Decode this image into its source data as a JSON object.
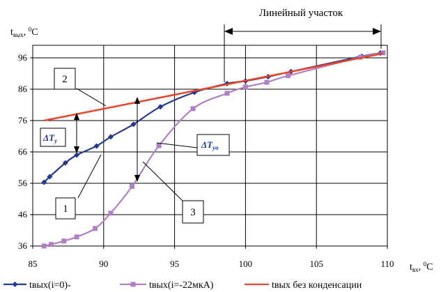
{
  "chart_data": {
    "type": "line",
    "ylabel": "t_вых, °C",
    "xlabel": "t_вх, °C",
    "xlim": [
      85,
      110
    ],
    "ylim": [
      36,
      100
    ],
    "x_ticks": [
      "85",
      "90",
      "95",
      "100",
      "105",
      "110"
    ],
    "y_ticks": [
      "36",
      "46",
      "56",
      "66",
      "76",
      "86",
      "96"
    ],
    "grid": true,
    "legend_position": "bottom",
    "annotations": {
      "linear_section": "Линейный участок",
      "labels": [
        "1",
        "2",
        "3"
      ],
      "delta_ty": "ΔT",
      "delta_ty_sub": "у",
      "delta_tyo": "ΔT",
      "delta_tyo_sub": "уо"
    },
    "series": [
      {
        "name": "tвых(i=0)-",
        "color": "#23388f",
        "marker": "diamond",
        "x": [
          85.8,
          86.2,
          87.3,
          88.1,
          89.5,
          90.5,
          92.1,
          94.0,
          96.4,
          98.7,
          100.0,
          101.6,
          103.2,
          108.2,
          109.5
        ],
        "y": [
          56.3,
          58.1,
          62.5,
          65.0,
          67.9,
          70.8,
          74.8,
          80.4,
          85.0,
          87.8,
          88.6,
          90.0,
          91.6,
          96.5,
          97.5
        ]
      },
      {
        "name": "tвых(i=-22мкА)",
        "color": "#b080c4",
        "marker": "square",
        "x": [
          85.8,
          86.3,
          87.2,
          88.1,
          89.4,
          90.5,
          92.0,
          93.9,
          96.3,
          98.7,
          100.0,
          101.5,
          103.0,
          108.1,
          109.7
        ],
        "y": [
          36.0,
          36.5,
          37.6,
          38.9,
          41.6,
          46.5,
          55.0,
          68.0,
          79.8,
          84.7,
          86.7,
          88.2,
          90.3,
          96.2,
          97.6
        ]
      },
      {
        "name": "tвых без конденсации",
        "color": "#e8452a",
        "marker": "none",
        "x": [
          85.8,
          109.7
        ],
        "y": [
          76.0,
          97.4
        ]
      }
    ]
  }
}
